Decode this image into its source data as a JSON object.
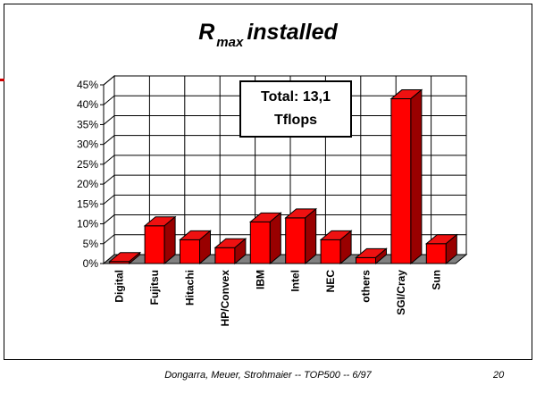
{
  "title": {
    "main": "R",
    "subscript": "max",
    "rest": "installed"
  },
  "annotation": {
    "line1": "Total: 13,1",
    "line2": "Tflops"
  },
  "footer": "Dongarra, Meuer, Strohmaier -- TOP500 -- 6/97",
  "page_number": "20",
  "chart_data": {
    "type": "bar",
    "style": "3d",
    "categories": [
      "Digital",
      "Fujitsu",
      "Hitachi",
      "HP/Convex",
      "IBM",
      "Intel",
      "NEC",
      "others",
      "SGI/Cray",
      "Sun"
    ],
    "series": [
      {
        "values": [
          0.5,
          9.5,
          6,
          4,
          10.5,
          11.5,
          6,
          1.5,
          41.5,
          5
        ]
      }
    ],
    "yticks": [
      "0%",
      "5%",
      "10%",
      "15%",
      "20%",
      "25%",
      "30%",
      "35%",
      "40%",
      "45%"
    ],
    "ylim": [
      0,
      45
    ],
    "yunit": "%",
    "grid": true,
    "colors": {
      "bar_front": "#ff0000",
      "bar_top": "#ee1111",
      "bar_side": "#990000"
    }
  }
}
